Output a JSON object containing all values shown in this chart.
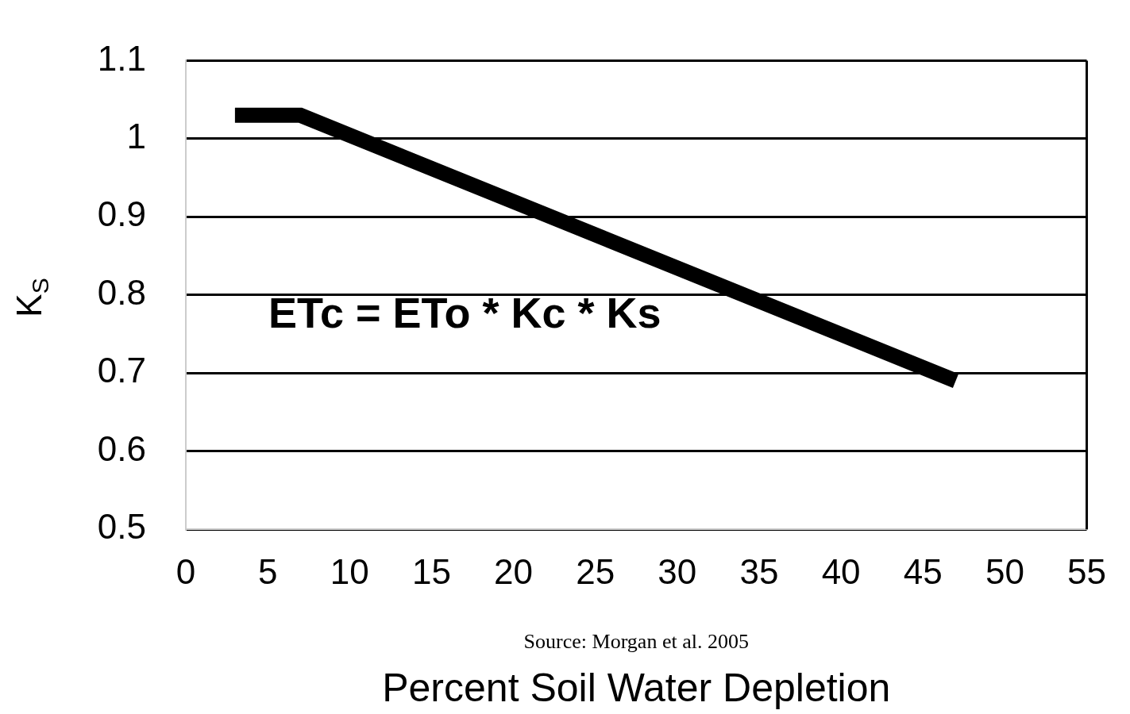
{
  "chart_data": {
    "type": "line",
    "xlabel": "Percent Soil Water Depletion",
    "ylabel": "K$_{S}$",
    "x": [
      3,
      7,
      47
    ],
    "series": [
      {
        "color": "#000000",
        "values": [
          1.03,
          1.03,
          0.69
        ]
      }
    ],
    "xlim": [
      0,
      55
    ],
    "xticks": [
      0,
      5,
      10,
      15,
      20,
      25,
      30,
      35,
      40,
      45,
      50,
      55
    ],
    "ylim": [
      0.5,
      1.1
    ],
    "yticks": [
      0.5,
      0.6,
      0.7,
      0.8,
      0.9,
      1,
      1.1
    ],
    "grid": "y",
    "legend": false,
    "marker": "none",
    "line_style": "solid",
    "annotations": [
      "ETc = ETo * Kc * Ks",
      "Source: Morgan et al. 2005"
    ]
  }
}
